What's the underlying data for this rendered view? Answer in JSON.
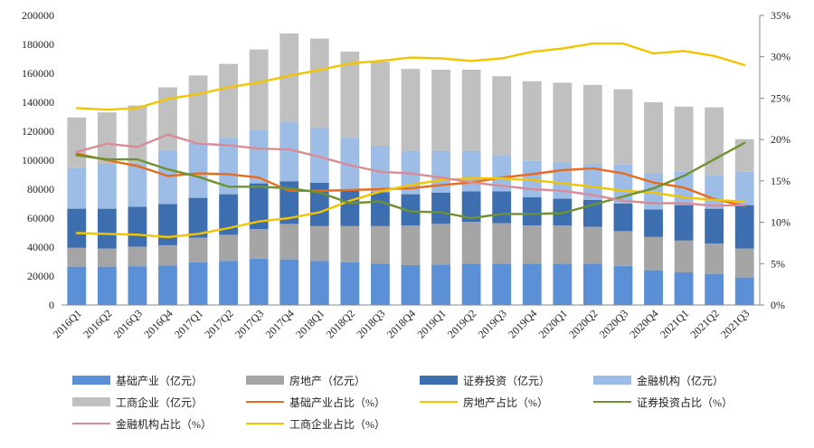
{
  "chart_data": {
    "type": "bar",
    "stacked": true,
    "categories": [
      "2016Q1",
      "2016Q2",
      "2016Q3",
      "2016Q4",
      "2017Q1",
      "2017Q2",
      "2017Q3",
      "2017Q4",
      "2018Q1",
      "2018Q2",
      "2018Q3",
      "2018Q4",
      "2019Q1",
      "2019Q2",
      "2019Q3",
      "2019Q4",
      "2020Q1",
      "2020Q2",
      "2020Q3",
      "2020Q4",
      "2021Q1",
      "2021Q2",
      "2021Q3"
    ],
    "left_axis": {
      "ylim": [
        0,
        200000
      ],
      "ticks": [
        "0",
        "20000",
        "40000",
        "60000",
        "80000",
        "100000",
        "120000",
        "140000",
        "160000",
        "180000",
        "200000"
      ]
    },
    "right_axis": {
      "ylim": [
        0,
        35
      ],
      "ticks": [
        "0%",
        "5%",
        "10%",
        "15%",
        "20%",
        "25%",
        "30%",
        "35%"
      ]
    },
    "bar_series": [
      {
        "name": "基础产业（亿元）",
        "color": "#5b8fd6",
        "values": [
          26500,
          26500,
          26800,
          27300,
          29500,
          30500,
          32000,
          31500,
          30500,
          29500,
          28500,
          27500,
          28000,
          28500,
          28500,
          28500,
          28500,
          28500,
          27000,
          24000,
          22500,
          21500,
          19000
        ]
      },
      {
        "name": "房地产（亿元）",
        "color": "#a5a5a5",
        "values": [
          13000,
          12500,
          13500,
          14000,
          17000,
          18000,
          20500,
          24500,
          24000,
          25000,
          26000,
          27500,
          28000,
          29000,
          28000,
          26500,
          26500,
          25500,
          24000,
          23000,
          22000,
          21000,
          20000
        ]
      },
      {
        "name": "证券投资（亿元）",
        "color": "#3d6fb0",
        "values": [
          27000,
          27500,
          27500,
          28500,
          27500,
          28000,
          31500,
          29500,
          30000,
          25000,
          23500,
          21500,
          21500,
          21000,
          22000,
          19500,
          18500,
          18500,
          19000,
          19000,
          24500,
          24000,
          30000
        ]
      },
      {
        "name": "金融机构（亿元）",
        "color": "#9dbde6",
        "values": [
          28000,
          31000,
          30000,
          37000,
          38000,
          39000,
          37000,
          41000,
          38000,
          36000,
          32000,
          30000,
          29000,
          28000,
          25000,
          25000,
          25000,
          25000,
          27000,
          25000,
          23000,
          23000,
          23000
        ]
      },
      {
        "name": "工商企业（亿元）",
        "color": "#c0c0c0",
        "values": [
          35000,
          35500,
          40000,
          43500,
          46500,
          51000,
          55500,
          61000,
          61500,
          59500,
          58000,
          56500,
          56000,
          56000,
          54500,
          55000,
          55000,
          54500,
          52000,
          49000,
          45000,
          47000,
          22500
        ]
      }
    ],
    "line_series": [
      {
        "name": "基础产业占比（%）",
        "color": "#e96b1b",
        "values": [
          18.3,
          17.5,
          16.8,
          15.6,
          15.9,
          15.8,
          15.4,
          13.8,
          13.8,
          13.9,
          14.0,
          14.1,
          14.5,
          14.8,
          15.4,
          15.8,
          16.3,
          16.5,
          15.9,
          14.8,
          14.2,
          12.8,
          12.0
        ]
      },
      {
        "name": "房地产占比（%）",
        "color": "#f2c500",
        "values": [
          8.7,
          8.6,
          8.5,
          8.2,
          8.6,
          9.3,
          10.1,
          10.5,
          11.2,
          12.6,
          13.7,
          14.5,
          15.1,
          15.3,
          15.3,
          15.1,
          14.7,
          14.3,
          13.8,
          13.6,
          13.0,
          12.7,
          12.5
        ]
      },
      {
        "name": "证券投资占比（%）",
        "color": "#6e9230",
        "values": [
          18.1,
          17.6,
          17.6,
          16.4,
          15.5,
          14.3,
          14.3,
          14.1,
          13.6,
          12.3,
          12.5,
          11.3,
          11.2,
          10.5,
          11.0,
          11.0,
          11.1,
          12.1,
          13.1,
          14.1,
          15.6,
          17.6,
          19.6
        ]
      },
      {
        "name": "金融机构占比（%）",
        "color": "#d98c96",
        "values": [
          18.5,
          19.5,
          19.1,
          20.6,
          19.5,
          19.3,
          18.9,
          18.8,
          17.9,
          16.9,
          16.1,
          15.9,
          15.4,
          14.8,
          14.4,
          14.0,
          13.8,
          13.3,
          12.6,
          12.3,
          12.3,
          12.0,
          12.1
        ]
      },
      {
        "name": "工商企业占比（%）",
        "color": "#f2c500",
        "values": [
          23.8,
          23.6,
          23.8,
          24.9,
          25.5,
          26.3,
          26.9,
          27.7,
          28.4,
          29.2,
          29.5,
          29.9,
          29.8,
          29.5,
          29.8,
          30.6,
          31.0,
          31.6,
          31.6,
          30.4,
          30.7,
          30.1,
          29.0
        ]
      }
    ]
  }
}
